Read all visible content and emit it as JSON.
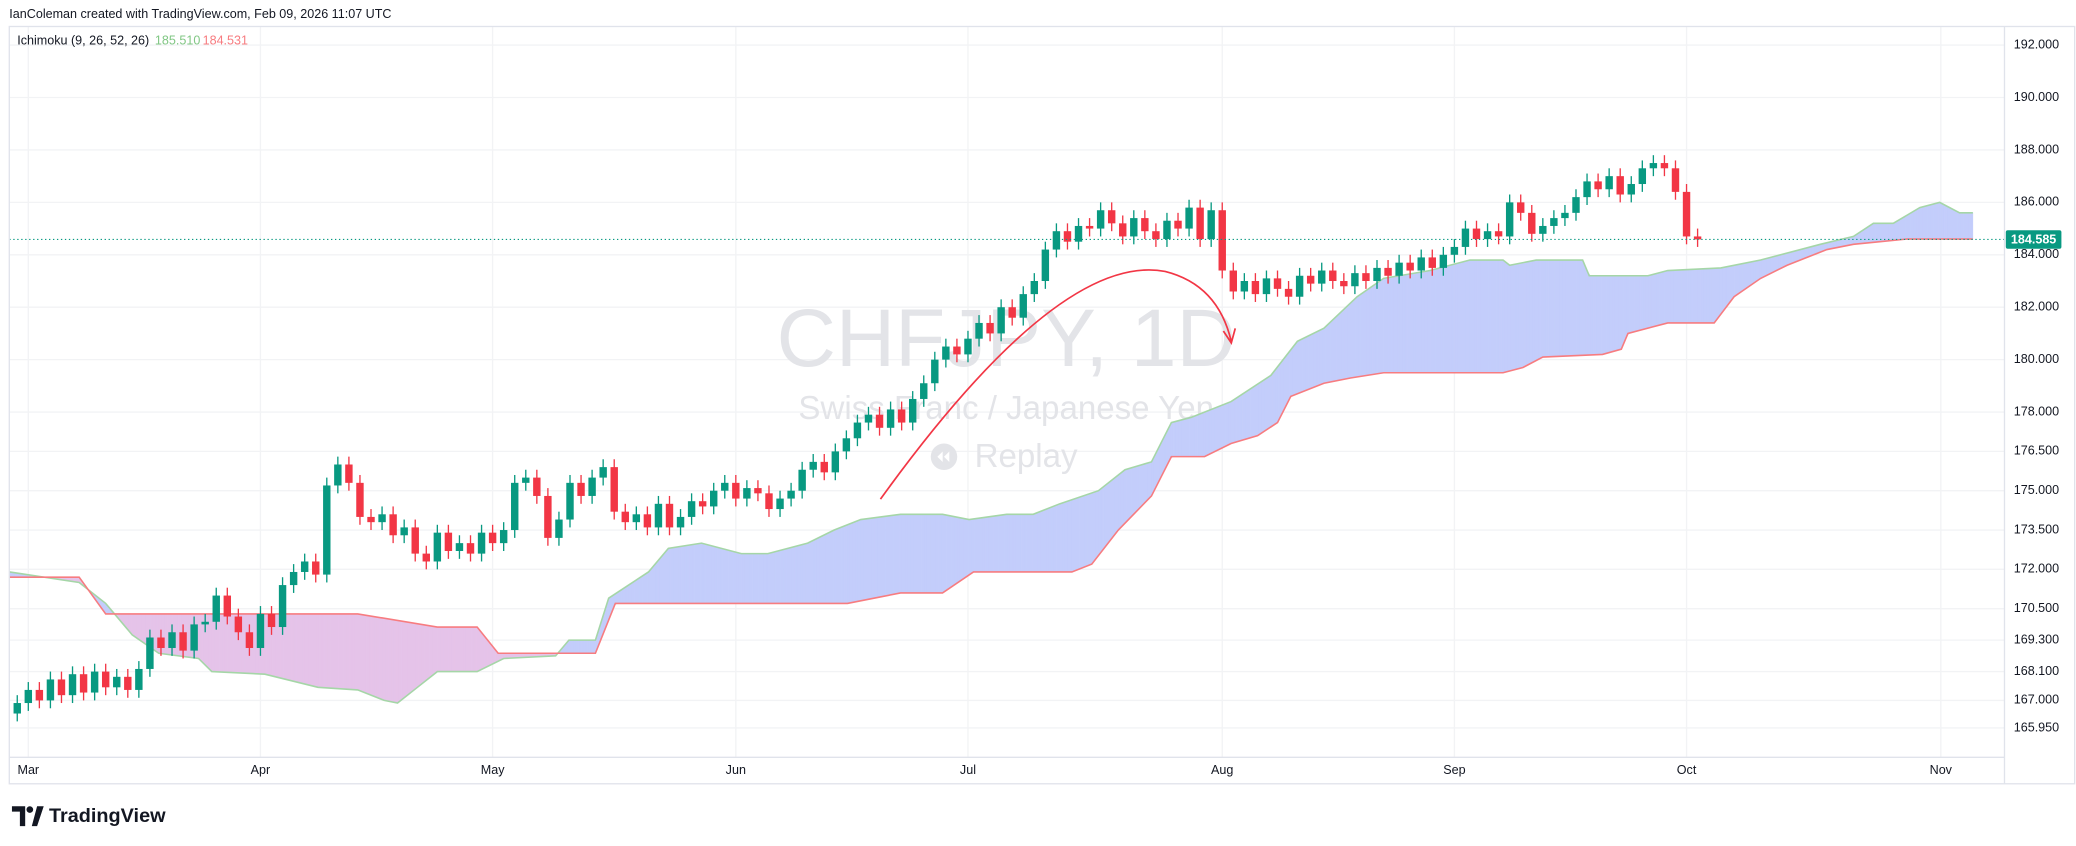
{
  "header": {
    "text": "IanColeman created with TradingView.com, Feb 09, 2026 11:07 UTC"
  },
  "watermark": {
    "symbol": "CHFJPY, 1D",
    "description": "Swiss Franc / Japanese Yen",
    "replay": "Replay"
  },
  "footer": {
    "brand": "TradingView"
  },
  "chart_data": {
    "type": "candlestick",
    "up_color": "#089981",
    "down_color": "#f23645",
    "open": [
      166.5,
      166.9,
      167.4,
      167.0,
      167.8,
      167.2,
      168.0,
      167.3,
      168.1,
      167.5,
      167.9,
      167.4,
      168.2,
      169.4,
      169.0,
      169.6,
      168.9,
      169.9,
      170.0,
      171.0,
      170.2,
      169.6,
      169.0,
      170.3,
      169.8,
      171.4,
      171.9,
      172.3,
      171.8,
      175.2,
      176.0,
      175.3,
      174.0,
      173.8,
      174.1,
      173.3,
      173.6,
      172.6,
      172.3,
      173.4,
      172.7,
      173.0,
      172.6,
      173.4,
      173.0,
      173.5,
      175.3,
      175.5,
      174.8,
      173.2,
      173.9,
      175.3,
      174.8,
      175.5,
      175.9,
      174.2,
      173.8,
      174.1,
      173.6,
      174.5,
      173.6,
      174.0,
      174.6,
      174.4,
      175.0,
      175.3,
      174.7,
      175.1,
      174.9,
      174.3,
      174.7,
      175.0,
      175.8,
      176.1,
      175.7,
      176.5,
      177.0,
      177.6,
      177.9,
      177.4,
      178.1,
      177.6,
      178.5,
      179.1,
      180.0,
      180.5,
      180.2,
      180.8,
      181.4,
      181.0,
      182.0,
      181.6,
      182.5,
      183.0,
      184.2,
      184.9,
      184.5,
      185.1,
      185.0,
      185.7,
      185.2,
      184.7,
      185.4,
      184.9,
      184.6,
      185.3,
      185.0,
      185.8,
      184.6,
      185.7,
      183.4,
      182.6,
      183.0,
      182.5,
      183.1,
      182.7,
      182.4,
      183.2,
      182.9,
      183.4,
      183.0,
      182.8,
      183.3,
      183.0,
      183.5,
      183.2,
      183.7,
      183.4,
      183.9,
      183.5,
      184.0,
      184.3,
      185.0,
      184.6,
      184.9,
      184.7,
      186.0,
      185.6,
      184.8,
      185.1,
      185.4,
      185.6,
      186.2,
      186.8,
      186.5,
      187.0,
      186.3,
      186.7,
      187.3,
      187.5,
      187.3,
      186.4,
      184.7
    ],
    "high": [
      167.2,
      167.7,
      167.7,
      168.1,
      168.1,
      168.3,
      168.3,
      168.4,
      168.4,
      168.2,
      168.2,
      168.5,
      169.7,
      169.7,
      169.9,
      169.9,
      170.2,
      170.3,
      171.3,
      171.3,
      170.5,
      169.9,
      170.6,
      170.6,
      171.7,
      172.2,
      172.6,
      172.6,
      175.5,
      176.3,
      176.3,
      175.6,
      174.3,
      174.4,
      174.4,
      173.9,
      173.9,
      172.9,
      173.7,
      173.7,
      173.3,
      173.3,
      173.7,
      173.7,
      173.8,
      175.6,
      175.8,
      175.8,
      175.1,
      174.2,
      175.6,
      175.6,
      175.8,
      176.2,
      176.2,
      174.5,
      174.4,
      174.4,
      174.8,
      174.8,
      174.3,
      174.9,
      174.9,
      175.3,
      175.6,
      175.6,
      175.4,
      175.4,
      175.2,
      175.0,
      175.3,
      176.1,
      176.4,
      176.4,
      176.8,
      177.3,
      177.9,
      178.2,
      178.2,
      178.4,
      178.4,
      178.8,
      179.4,
      180.3,
      180.8,
      180.8,
      181.1,
      181.7,
      181.7,
      182.3,
      182.3,
      182.8,
      183.3,
      184.5,
      185.2,
      185.2,
      185.4,
      185.4,
      186.0,
      186.0,
      185.5,
      185.7,
      185.7,
      185.2,
      185.6,
      185.6,
      186.1,
      186.1,
      186.0,
      186.0,
      183.7,
      183.3,
      183.3,
      183.4,
      183.4,
      183.0,
      183.5,
      183.5,
      183.7,
      183.7,
      183.3,
      183.6,
      183.6,
      183.8,
      183.8,
      184.0,
      184.0,
      184.2,
      184.2,
      184.3,
      184.6,
      185.3,
      185.3,
      185.2,
      185.2,
      186.3,
      186.3,
      185.9,
      185.4,
      185.7,
      185.9,
      186.5,
      187.1,
      187.1,
      187.3,
      187.3,
      187.0,
      187.6,
      187.8,
      187.8,
      187.6,
      186.7,
      185.0
    ],
    "low": [
      166.2,
      166.6,
      166.7,
      166.7,
      166.9,
      166.9,
      167.0,
      167.0,
      167.2,
      167.2,
      167.1,
      167.1,
      167.9,
      168.7,
      168.7,
      168.6,
      168.6,
      169.6,
      169.7,
      169.9,
      169.3,
      168.7,
      168.7,
      169.5,
      169.5,
      171.1,
      171.6,
      171.5,
      171.5,
      174.9,
      175.0,
      173.7,
      173.5,
      173.5,
      173.0,
      173.0,
      172.3,
      172.0,
      172.0,
      172.4,
      172.4,
      172.3,
      172.3,
      172.7,
      172.7,
      173.2,
      175.0,
      174.5,
      172.9,
      172.9,
      173.6,
      174.5,
      174.5,
      175.2,
      173.9,
      173.5,
      173.5,
      173.3,
      173.3,
      173.3,
      173.3,
      173.7,
      174.1,
      174.1,
      174.7,
      174.4,
      174.4,
      174.6,
      174.0,
      174.0,
      174.4,
      174.7,
      175.5,
      175.4,
      175.4,
      176.2,
      176.7,
      177.3,
      177.1,
      177.1,
      177.3,
      177.3,
      178.2,
      178.8,
      179.7,
      179.9,
      179.9,
      180.5,
      180.7,
      180.7,
      181.3,
      181.3,
      182.2,
      182.7,
      183.9,
      184.2,
      184.2,
      184.7,
      184.7,
      184.9,
      184.4,
      184.4,
      184.6,
      184.3,
      184.3,
      184.7,
      184.7,
      184.3,
      184.3,
      183.1,
      182.3,
      182.3,
      182.2,
      182.2,
      182.4,
      182.1,
      182.1,
      182.6,
      182.6,
      182.7,
      182.5,
      182.5,
      182.7,
      182.7,
      182.9,
      182.9,
      183.1,
      183.1,
      183.2,
      183.2,
      183.7,
      184.0,
      184.3,
      184.3,
      184.4,
      184.4,
      185.3,
      184.5,
      184.5,
      184.8,
      185.1,
      185.3,
      185.9,
      186.2,
      186.2,
      186.0,
      186.0,
      186.4,
      187.0,
      187.0,
      186.1,
      184.4,
      184.3
    ],
    "close": [
      166.9,
      167.4,
      167.0,
      167.8,
      167.2,
      168.0,
      167.3,
      168.1,
      167.5,
      167.9,
      167.4,
      168.2,
      169.4,
      169.0,
      169.6,
      168.9,
      169.9,
      170.0,
      171.0,
      170.2,
      169.6,
      169.0,
      170.3,
      169.8,
      171.4,
      171.9,
      172.3,
      171.8,
      175.2,
      176.0,
      175.3,
      174.0,
      173.8,
      174.1,
      173.3,
      173.6,
      172.6,
      172.3,
      173.4,
      172.7,
      173.0,
      172.6,
      173.4,
      173.0,
      173.5,
      175.3,
      175.5,
      174.8,
      173.2,
      173.9,
      175.3,
      174.8,
      175.5,
      175.9,
      174.2,
      173.8,
      174.1,
      173.6,
      174.5,
      173.6,
      174.0,
      174.6,
      174.4,
      175.0,
      175.3,
      174.7,
      175.1,
      174.9,
      174.3,
      174.7,
      175.0,
      175.8,
      176.1,
      175.7,
      176.5,
      177.0,
      177.6,
      177.9,
      177.4,
      178.1,
      177.6,
      178.5,
      179.1,
      180.0,
      180.5,
      180.2,
      180.8,
      181.4,
      181.0,
      182.0,
      181.6,
      182.5,
      183.0,
      184.2,
      184.9,
      184.5,
      185.1,
      185.0,
      185.7,
      185.2,
      184.7,
      185.4,
      184.9,
      184.6,
      185.3,
      185.0,
      185.8,
      184.6,
      185.7,
      183.4,
      182.6,
      183.0,
      182.5,
      183.1,
      182.7,
      182.4,
      183.2,
      182.9,
      183.4,
      183.0,
      182.8,
      183.3,
      183.0,
      183.5,
      183.2,
      183.7,
      183.4,
      183.9,
      183.5,
      184.0,
      184.3,
      185.0,
      184.6,
      184.9,
      184.7,
      186.0,
      185.6,
      184.8,
      185.1,
      185.4,
      185.6,
      186.2,
      186.8,
      186.5,
      187.0,
      186.3,
      186.7,
      187.3,
      187.5,
      187.3,
      186.4,
      184.7,
      184.585
    ],
    "indicator": {
      "label": "Ichimoku (9, 26, 52, 26)",
      "readings": [
        "185.510",
        "184.531"
      ],
      "reading_colors": [
        "#81c784",
        "#f77c80"
      ]
    },
    "cloud": {
      "fill_up": "#c3cdfb",
      "fill_down": "#e5c3e9",
      "span_a": {
        "color": "#a5d6a7",
        "x": [
          -0.7,
          5.6,
          8.0,
          10.4,
          12.8,
          16.4,
          17.6,
          22.4,
          27.2,
          30.8,
          33.2,
          34.4,
          36.2,
          38.0,
          41.6,
          44.0,
          48.7,
          49.9,
          52.3,
          53.5,
          55.3,
          57.1,
          58.9,
          61.9,
          65.5,
          67.9,
          71.5,
          73.9,
          76.3,
          79.9,
          83.7,
          86.1,
          89.5,
          91.9,
          94.3,
          97.8,
          100.2,
          102.6,
          104.4,
          106.2,
          109.8,
          113.4,
          115.8,
          118.2,
          121.2,
          123.6,
          127.8,
          131.4,
          134.4,
          135.0,
          137.4,
          141.6,
          142.2,
          147.5,
          149.3,
          154.1,
          157.7,
          163.1,
          166.1,
          167.9,
          169.7,
          172.1,
          173.9,
          175.7,
          176.9
        ],
        "values": [
          171.9,
          171.5,
          170.7,
          169.5,
          168.8,
          168.6,
          168.1,
          168.0,
          167.5,
          167.4,
          167.0,
          166.9,
          167.5,
          168.1,
          168.1,
          168.6,
          168.7,
          169.3,
          169.3,
          170.9,
          171.4,
          171.9,
          172.8,
          173.0,
          172.6,
          172.6,
          173.0,
          173.5,
          173.9,
          174.1,
          174.1,
          173.9,
          174.1,
          174.1,
          174.5,
          175.0,
          175.8,
          176.1,
          177.6,
          177.8,
          178.4,
          179.4,
          180.7,
          181.2,
          182.4,
          183.1,
          183.4,
          183.8,
          183.8,
          183.6,
          183.8,
          183.8,
          183.2,
          183.2,
          183.4,
          183.5,
          183.8,
          184.4,
          184.7,
          185.2,
          185.2,
          185.8,
          186.0,
          185.6,
          185.6
        ]
      },
      "span_b": {
        "color": "#f77c80",
        "x": [
          -0.7,
          5.6,
          8.0,
          30.8,
          38.0,
          41.6,
          43.5,
          52.3,
          54.1,
          75.1,
          77.5,
          79.9,
          83.7,
          86.5,
          95.4,
          97.2,
          99.6,
          102.6,
          104.4,
          107.4,
          109.8,
          112.2,
          114.0,
          115.2,
          118.2,
          120.6,
          123.6,
          134.4,
          136.2,
          138.0,
          143.4,
          145.1,
          145.7,
          149.3,
          153.5,
          155.3,
          157.7,
          160.1,
          162.5,
          163.7,
          166.1,
          168.5,
          170.9,
          176.9
        ],
        "values": [
          171.7,
          171.7,
          170.3,
          170.3,
          169.8,
          169.8,
          168.8,
          168.8,
          170.7,
          170.7,
          170.9,
          171.1,
          171.1,
          171.9,
          171.9,
          172.2,
          173.5,
          174.8,
          176.3,
          176.3,
          176.8,
          177.1,
          177.6,
          178.6,
          179.1,
          179.3,
          179.5,
          179.5,
          179.7,
          180.1,
          180.2,
          180.4,
          181.0,
          181.4,
          181.4,
          182.4,
          183.1,
          183.6,
          184.0,
          184.2,
          184.4,
          184.5,
          184.6,
          184.6
        ]
      }
    },
    "xlim": [
      -0.72,
      179.76
    ],
    "xticks": [
      {
        "value": 1,
        "label": "Mar"
      },
      {
        "value": 22,
        "label": "Apr"
      },
      {
        "value": 43,
        "label": "May"
      },
      {
        "value": 65,
        "label": "Jun"
      },
      {
        "value": 86,
        "label": "Jul"
      },
      {
        "value": 109,
        "label": "Aug"
      },
      {
        "value": 130,
        "label": "Sep"
      },
      {
        "value": 151,
        "label": "Oct"
      },
      {
        "value": 174,
        "label": "Nov"
      }
    ],
    "ylim": [
      164.83,
      192.71
    ],
    "yticks": [
      {
        "value": 165.95,
        "label": "165.950"
      },
      {
        "value": 167,
        "label": "167.000"
      },
      {
        "value": 168.1,
        "label": "168.100"
      },
      {
        "value": 169.3,
        "label": "169.300"
      },
      {
        "value": 170.5,
        "label": "170.500"
      },
      {
        "value": 172,
        "label": "172.000"
      },
      {
        "value": 173.5,
        "label": "173.500"
      },
      {
        "value": 175,
        "label": "175.000"
      },
      {
        "value": 176.5,
        "label": "176.500"
      },
      {
        "value": 178,
        "label": "178.000"
      },
      {
        "value": 180,
        "label": "180.000"
      },
      {
        "value": 182,
        "label": "182.000"
      },
      {
        "value": 184,
        "label": "184.000"
      },
      {
        "value": 186,
        "label": "186.000"
      },
      {
        "value": 188,
        "label": "188.000"
      },
      {
        "value": 190,
        "label": "190.000"
      },
      {
        "value": 192,
        "label": "192.000"
      }
    ],
    "grid": true
  }
}
